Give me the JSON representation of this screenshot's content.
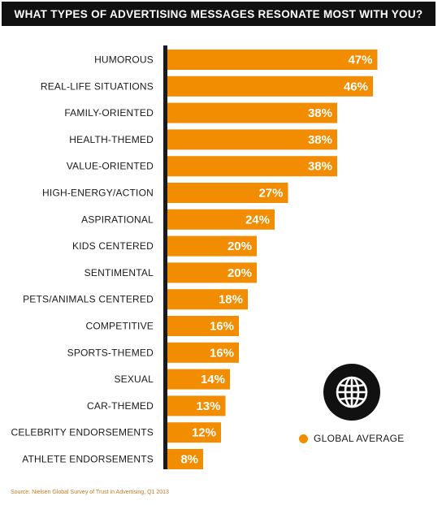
{
  "colors": {
    "bar": "#f28c00",
    "axis": "#1a1a1a",
    "header": "#111111"
  },
  "icon": "globe-icon",
  "legend": {
    "label": "GLOBAL AVERAGE"
  },
  "source": "Source: Nielsen Global Survey of Trust in Advertising, Q1 2013",
  "chart_data": {
    "type": "bar",
    "orientation": "horizontal",
    "title": "WHAT TYPES OF ADVERTISING MESSAGES RESONATE MOST WITH YOU?",
    "categories": [
      "HUMOROUS",
      "REAL-LIFE SITUATIONS",
      "FAMILY-ORIENTED",
      "HEALTH-THEMED",
      "VALUE-ORIENTED",
      "HIGH-ENERGY/ACTION",
      "ASPIRATIONAL",
      "KIDS CENTERED",
      "SENTIMENTAL",
      "PETS/ANIMALS CENTERED",
      "COMPETITIVE",
      "SPORTS-THEMED",
      "SEXUAL",
      "CAR-THEMED",
      "CELEBRITY ENDORSEMENTS",
      "ATHLETE ENDORSEMENTS"
    ],
    "series": [
      {
        "name": "GLOBAL AVERAGE",
        "values": [
          47,
          46,
          38,
          38,
          38,
          27,
          24,
          20,
          20,
          18,
          16,
          16,
          14,
          13,
          12,
          8
        ]
      }
    ],
    "value_labels": [
      "47%",
      "46%",
      "38%",
      "38%",
      "38%",
      "27%",
      "24%",
      "20%",
      "20%",
      "18%",
      "16%",
      "16%",
      "14%",
      "13%",
      "12%",
      "8%"
    ],
    "xlim": [
      0,
      50
    ],
    "grid": false,
    "legend_position": "bottom-right"
  }
}
